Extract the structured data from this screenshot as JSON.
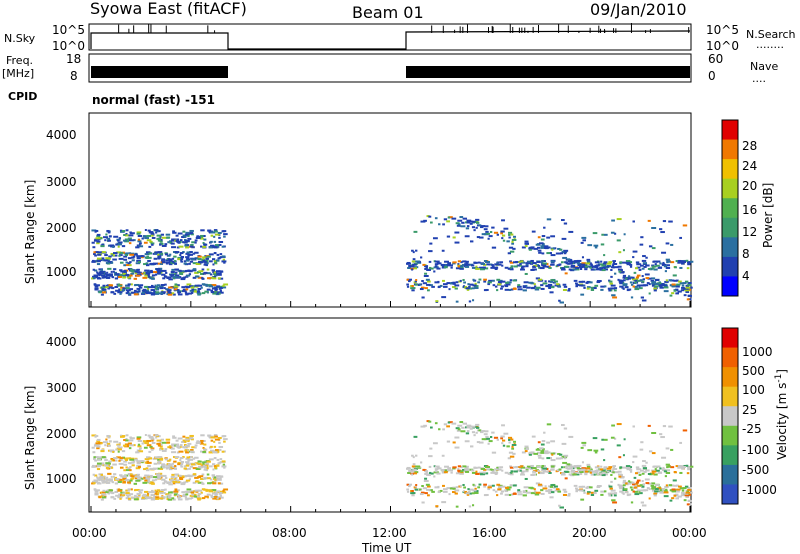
{
  "header": {
    "station": "Syowa East (fitACF)",
    "beam": "Beam 01",
    "date": "09/Jan/2010"
  },
  "left_labels": {
    "nsky": "N.Sky",
    "freq_line1": "Freq.",
    "freq_line2": "[MHz]",
    "cpid": "CPID"
  },
  "right_labels": {
    "nsearch": "N.Search",
    "nsearch_dots": "........",
    "nave": "Nave",
    "nave_dots": "...."
  },
  "noise_panel": {
    "y_ticks_left": [
      "10^5",
      "10^0"
    ],
    "y_ticks_right": [
      "10^5",
      "10^0"
    ]
  },
  "freq_panel": {
    "y_ticks_left": [
      "18",
      "8"
    ],
    "y_ticks_right": [
      "60",
      "0"
    ]
  },
  "cpid_panel": {
    "text": "normal (fast) -151"
  },
  "chart_data": [
    {
      "type": "heatmap",
      "name": "Power",
      "ylabel": "Slant Range [km]",
      "y_ticks": [
        "4000",
        "3000",
        "2000",
        "1000"
      ],
      "ylim": [
        180,
        4580
      ],
      "xlim_hours": [
        0,
        24
      ],
      "colorbar": {
        "label": "Power [dB]",
        "ticks": [
          "28",
          "24",
          "20",
          "16",
          "12",
          "8",
          "4"
        ],
        "colors": [
          "#0000ff",
          "#2040b0",
          "#2a6fa0",
          "#3a9a6a",
          "#50b050",
          "#a8d020",
          "#f0c000",
          "#f07800",
          "#e00000"
        ]
      },
      "scatter_blocks_hours": [
        [
          0.0,
          5.3
        ],
        [
          12.6,
          24.0
        ]
      ]
    },
    {
      "type": "heatmap",
      "name": "Velocity",
      "ylabel": "Slant Range [km]",
      "y_ticks": [
        "4000",
        "3000",
        "2000",
        "1000"
      ],
      "ylim": [
        180,
        4580
      ],
      "xlim_hours": [
        0,
        24
      ],
      "colorbar": {
        "label": "Velocity [m s",
        "label_sup": "-1",
        "label_end": "]",
        "ticks": [
          "1000",
          "500",
          "100",
          "25",
          "-25",
          "-100",
          "-500",
          "-1000"
        ],
        "colors": [
          "#3050c0",
          "#2a6f9a",
          "#38a060",
          "#70c040",
          "#c8c8c8",
          "#f0c020",
          "#f09000",
          "#f06000",
          "#e00000"
        ]
      }
    }
  ],
  "x_axis": {
    "ticks": [
      "00:00",
      "04:00",
      "08:00",
      "12:00",
      "16:00",
      "20:00",
      "00:00"
    ],
    "label": "Time UT"
  }
}
